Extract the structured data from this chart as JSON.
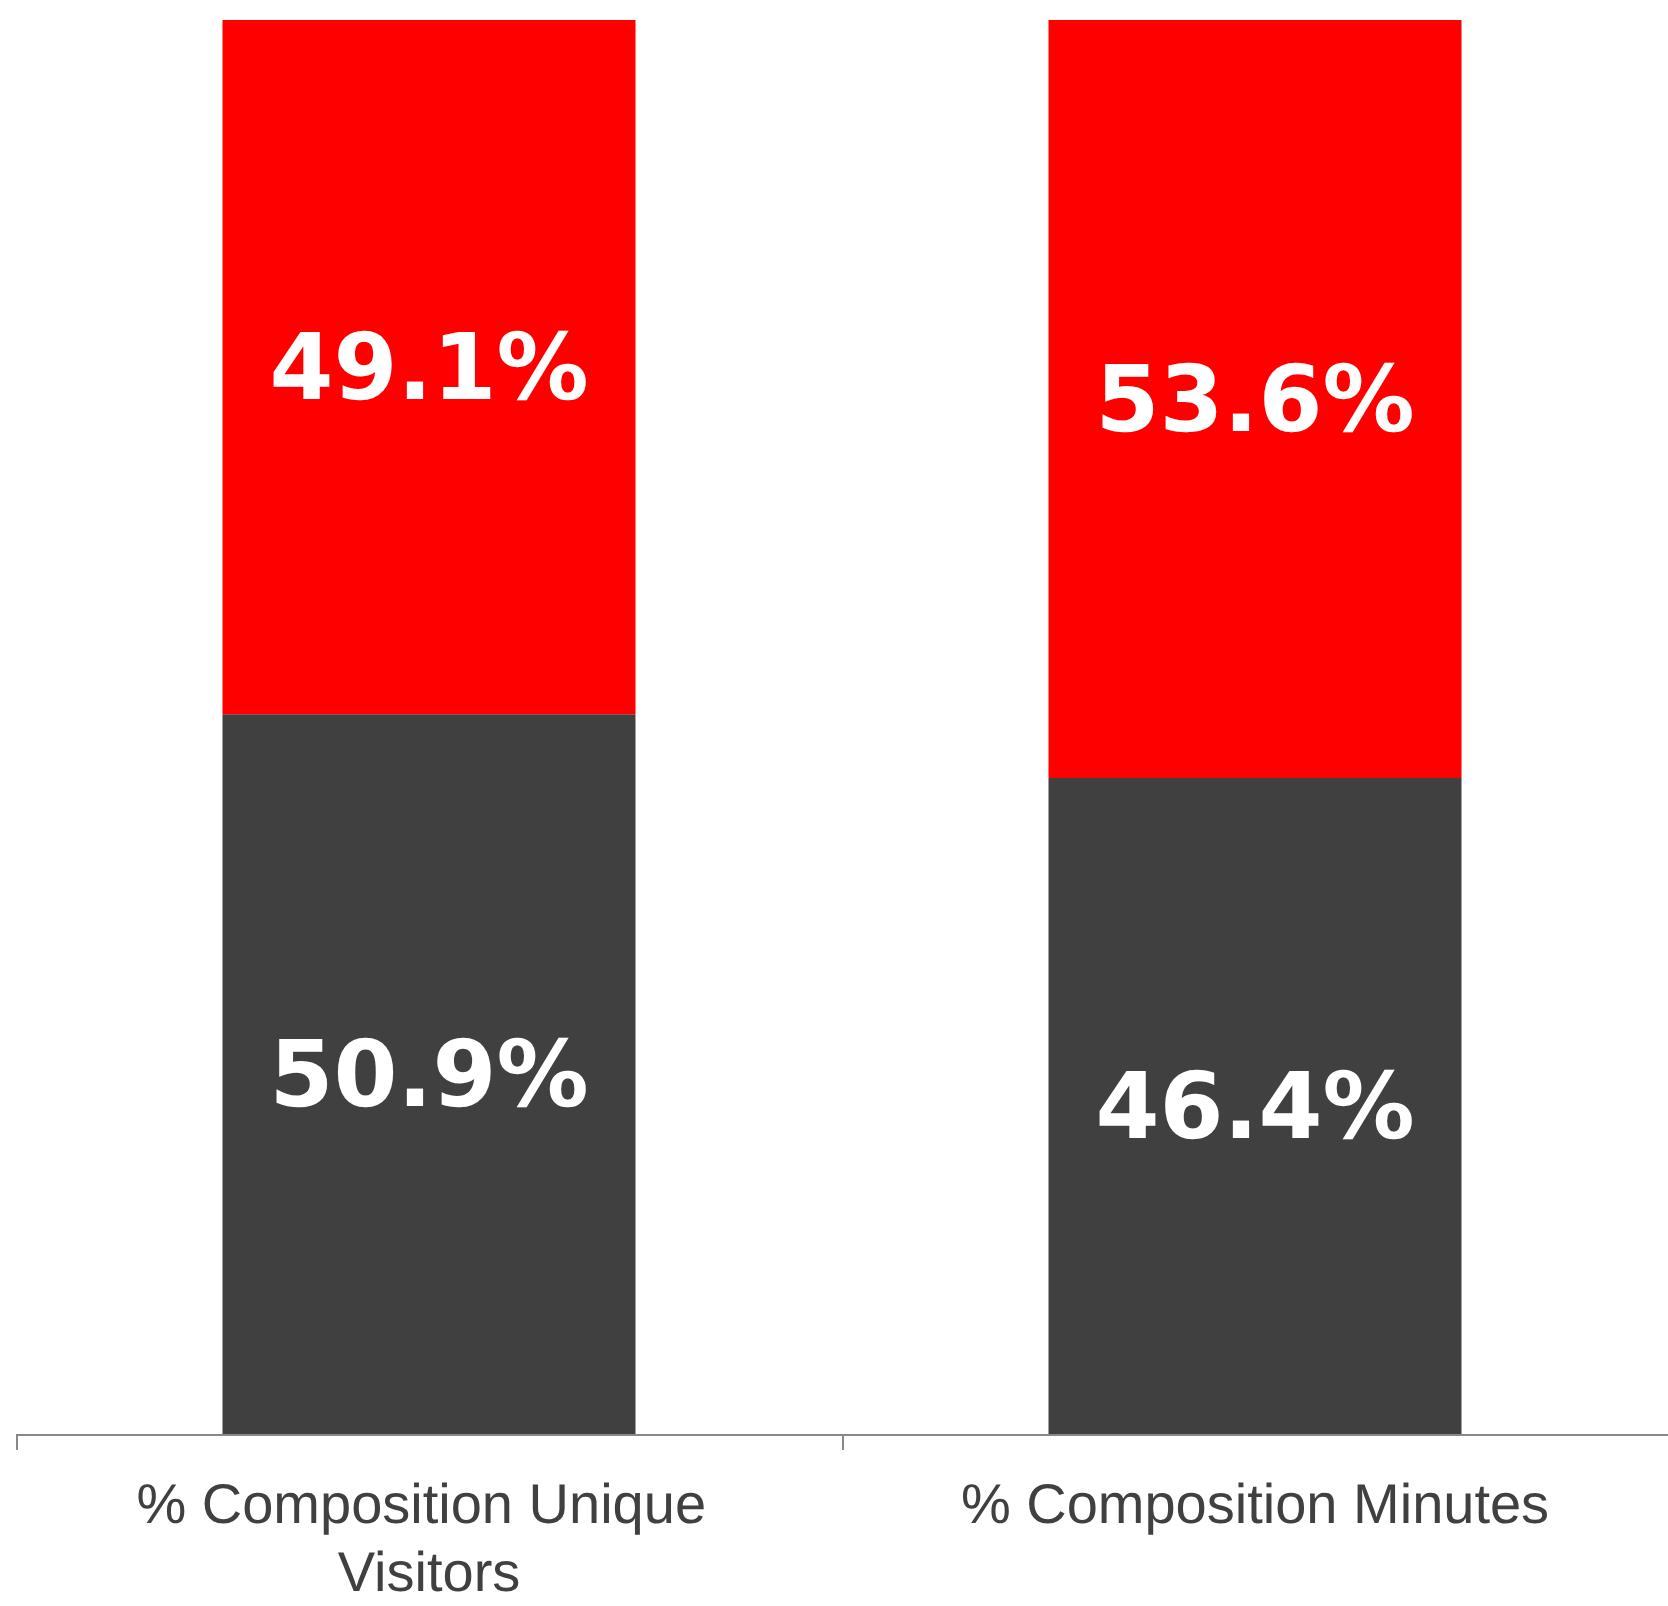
{
  "chart_data": {
    "type": "bar",
    "stacked": true,
    "categories": [
      "% Composition Unique Visitors",
      "% Composition Minutes"
    ],
    "ylim": [
      0,
      100
    ],
    "tick_labels": "x",
    "series": [
      {
        "color": "#404040",
        "values": [
          50.9,
          46.4
        ],
        "value_labels": [
          "50.9%",
          "46.4%"
        ]
      },
      {
        "color": "#ff0000",
        "values": [
          49.1,
          53.6
        ],
        "value_labels": [
          "49.1%",
          "53.6%"
        ]
      }
    ]
  }
}
